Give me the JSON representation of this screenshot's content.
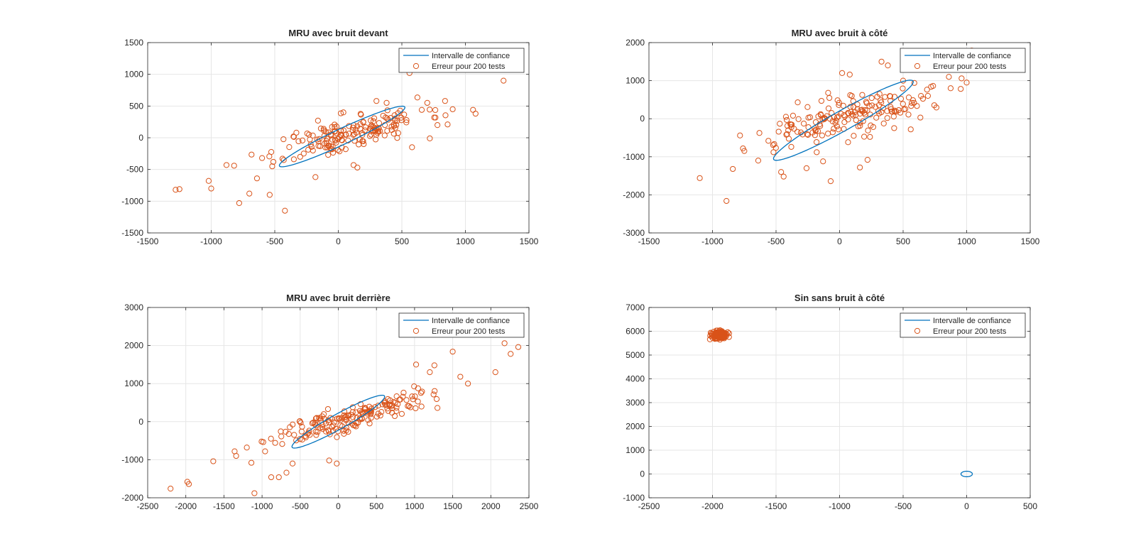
{
  "figure": {
    "background": "#ffffff"
  },
  "colors": {
    "ellipse": "#0072BD",
    "points": "#D95319",
    "grid": "#e6e6e6",
    "axis": "#262626"
  },
  "legend": {
    "line_label": "Intervalle de confiance",
    "marker_label": "Erreur pour 200 tests",
    "placement": "top-right"
  },
  "chart_data": [
    {
      "type": "scatter",
      "title": "MRU avec bruit devant",
      "xlim": [
        -1500,
        1500
      ],
      "ylim": [
        -1500,
        1500
      ],
      "xticks": [
        -1500,
        -1000,
        -500,
        0,
        500,
        1000,
        1500
      ],
      "yticks": [
        -1500,
        -1000,
        -500,
        0,
        500,
        1000,
        1500
      ],
      "grid": true,
      "ellipse": {
        "center": [
          30,
          20
        ],
        "semi_major": 680,
        "semi_minor": 100,
        "angle_deg": 44
      },
      "cluster": {
        "center": [
          120,
          80
        ],
        "spread_major": 560,
        "spread_minor": 210,
        "angle_deg": 30,
        "count": 200,
        "seed": 11
      },
      "points": [
        [
          -1280,
          -820
        ],
        [
          -1250,
          -810
        ],
        [
          -1020,
          -680
        ],
        [
          -1000,
          -800
        ],
        [
          -880,
          -430
        ],
        [
          -820,
          -440
        ],
        [
          -780,
          -1030
        ],
        [
          -700,
          -880
        ],
        [
          -640,
          -640
        ],
        [
          -600,
          -320
        ],
        [
          -540,
          -900
        ],
        [
          -520,
          -450
        ],
        [
          -420,
          -1150
        ],
        [
          -330,
          80
        ],
        [
          -300,
          -300
        ],
        [
          -180,
          -620
        ],
        [
          -160,
          270
        ],
        [
          -80,
          -270
        ],
        [
          40,
          400
        ],
        [
          120,
          -430
        ],
        [
          150,
          -470
        ],
        [
          200,
          -100
        ],
        [
          300,
          580
        ],
        [
          380,
          550
        ],
        [
          560,
          1020
        ],
        [
          580,
          -150
        ],
        [
          700,
          550
        ],
        [
          720,
          -10
        ],
        [
          780,
          200
        ],
        [
          840,
          580
        ],
        [
          860,
          210
        ],
        [
          900,
          450
        ],
        [
          1060,
          440
        ],
        [
          1080,
          380
        ],
        [
          1300,
          900
        ]
      ]
    },
    {
      "type": "scatter",
      "title": "MRU avec bruit à côté",
      "xlim": [
        -1500,
        1500
      ],
      "ylim": [
        -3000,
        2000
      ],
      "xticks": [
        -1500,
        -1000,
        -500,
        0,
        500,
        1000,
        1500
      ],
      "yticks": [
        -3000,
        -2000,
        -1000,
        0,
        1000,
        2000
      ],
      "grid": true,
      "ellipse": {
        "center": [
          30,
          -40
        ],
        "semi_major": 1180,
        "semi_minor": 140,
        "angle_deg": 63
      },
      "cluster": {
        "center": [
          80,
          50
        ],
        "spread_major": 820,
        "spread_minor": 330,
        "angle_deg": 45,
        "count": 200,
        "seed": 23
      },
      "points": [
        [
          -1100,
          -1560
        ],
        [
          -890,
          -2160
        ],
        [
          -840,
          -1320
        ],
        [
          -760,
          -780
        ],
        [
          -640,
          -1100
        ],
        [
          -560,
          -580
        ],
        [
          -520,
          -880
        ],
        [
          -460,
          -1400
        ],
        [
          -440,
          -1520
        ],
        [
          -380,
          -740
        ],
        [
          -260,
          -1300
        ],
        [
          -180,
          -880
        ],
        [
          -130,
          -1120
        ],
        [
          -90,
          680
        ],
        [
          -70,
          -1640
        ],
        [
          20,
          1200
        ],
        [
          80,
          1160
        ],
        [
          160,
          -1280
        ],
        [
          220,
          -1080
        ],
        [
          330,
          1500
        ],
        [
          380,
          1400
        ],
        [
          500,
          1000
        ],
        [
          560,
          -280
        ],
        [
          720,
          840
        ],
        [
          860,
          1100
        ],
        [
          960,
          1060
        ],
        [
          1000,
          950
        ],
        [
          1040,
          1790
        ]
      ]
    },
    {
      "type": "scatter",
      "title": "MRU avec bruit derrière",
      "xlim": [
        -2500,
        2500
      ],
      "ylim": [
        -2000,
        3000
      ],
      "xticks": [
        -2500,
        -2000,
        -1500,
        -1000,
        -500,
        0,
        500,
        1000,
        1500,
        2000,
        2500
      ],
      "yticks": [
        -2000,
        -1000,
        0,
        1000,
        2000,
        3000
      ],
      "grid": true,
      "ellipse": {
        "center": [
          0,
          0
        ],
        "semi_major": 910,
        "semi_minor": 150,
        "angle_deg": 49
      },
      "cluster": {
        "center": [
          150,
          100
        ],
        "spread_major": 1000,
        "spread_minor": 260,
        "angle_deg": 32,
        "count": 200,
        "seed": 37
      },
      "points": [
        [
          -2200,
          -1760
        ],
        [
          -1980,
          -1580
        ],
        [
          -1960,
          -1640
        ],
        [
          -1640,
          -1040
        ],
        [
          -1360,
          -780
        ],
        [
          -1340,
          -900
        ],
        [
          -1200,
          -680
        ],
        [
          -1140,
          -1080
        ],
        [
          -1100,
          -1880
        ],
        [
          -960,
          -780
        ],
        [
          -880,
          -1460
        ],
        [
          -780,
          -1460
        ],
        [
          -680,
          -1340
        ],
        [
          -600,
          -1100
        ],
        [
          -120,
          -1020
        ],
        [
          -20,
          -1100
        ],
        [
          1020,
          1500
        ],
        [
          1200,
          1300
        ],
        [
          1260,
          1480
        ],
        [
          1300,
          360
        ],
        [
          1500,
          1840
        ],
        [
          1600,
          1180
        ],
        [
          1700,
          1000
        ],
        [
          2060,
          1300
        ],
        [
          2180,
          2060
        ],
        [
          2260,
          1780
        ],
        [
          2360,
          1960
        ]
      ]
    },
    {
      "type": "scatter",
      "title": "Sin sans bruit à côté",
      "xlim": [
        -2500,
        500
      ],
      "ylim": [
        -1000,
        7000
      ],
      "xticks": [
        -2500,
        -2000,
        -1500,
        -1000,
        -500,
        0,
        500
      ],
      "yticks": [
        -1000,
        0,
        1000,
        2000,
        3000,
        4000,
        5000,
        6000,
        7000
      ],
      "grid": true,
      "ellipse": {
        "center": [
          0,
          0
        ],
        "semi_major": 45,
        "semi_minor": 115,
        "angle_deg": 0
      },
      "cluster": {
        "center": [
          -1945,
          5850
        ],
        "spread_major": 50,
        "spread_minor": 130,
        "angle_deg": 0,
        "count": 200,
        "seed": 53
      },
      "points": [
        [
          -2020,
          5660
        ],
        [
          -2000,
          5720
        ],
        [
          -1880,
          5960
        ],
        [
          -1870,
          5760
        ],
        [
          -1940,
          6040
        ],
        [
          -1990,
          5980
        ]
      ]
    }
  ]
}
